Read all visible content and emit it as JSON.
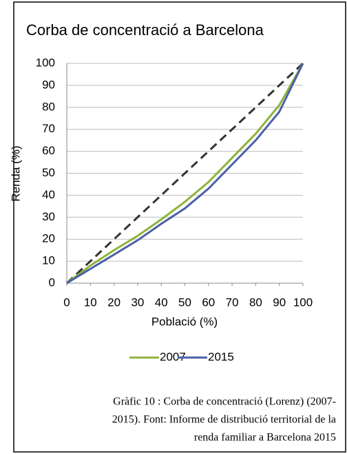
{
  "chart_data": {
    "type": "line",
    "title": "Corba de concentració a Barcelona",
    "x_label": "Població (%)",
    "y_label": "Renda (%)",
    "x": [
      0,
      10,
      20,
      30,
      40,
      50,
      60,
      70,
      80,
      90,
      100
    ],
    "series": [
      {
        "name": "2007",
        "color": "#8db33a",
        "values": [
          0,
          8,
          15,
          21.5,
          29,
          37,
          46,
          57,
          68,
          81,
          100
        ]
      },
      {
        "name": "2015",
        "color": "#4a5fa8",
        "values": [
          0,
          6.5,
          13,
          19.5,
          27,
          34,
          43,
          54,
          65,
          78,
          100
        ]
      }
    ],
    "reference_line": {
      "x": [
        0,
        100
      ],
      "values": [
        0,
        100
      ],
      "color": "#333333",
      "dashed": true
    },
    "xlim": [
      0,
      100
    ],
    "xticks": [
      0,
      10,
      20,
      30,
      40,
      50,
      60,
      70,
      80,
      90,
      100
    ],
    "ylim": [
      0,
      100
    ],
    "yticks": [
      0,
      10,
      20,
      30,
      40,
      50,
      60,
      70,
      80,
      90,
      100
    ],
    "grid": true,
    "legend": "bottom",
    "caption": [
      "Gràfic 10 : Corba de concentració (Lorenz) (2007-",
      "2015). Font: Informe de distribució territorial de la",
      "renda familiar a Barcelona 2015"
    ]
  }
}
